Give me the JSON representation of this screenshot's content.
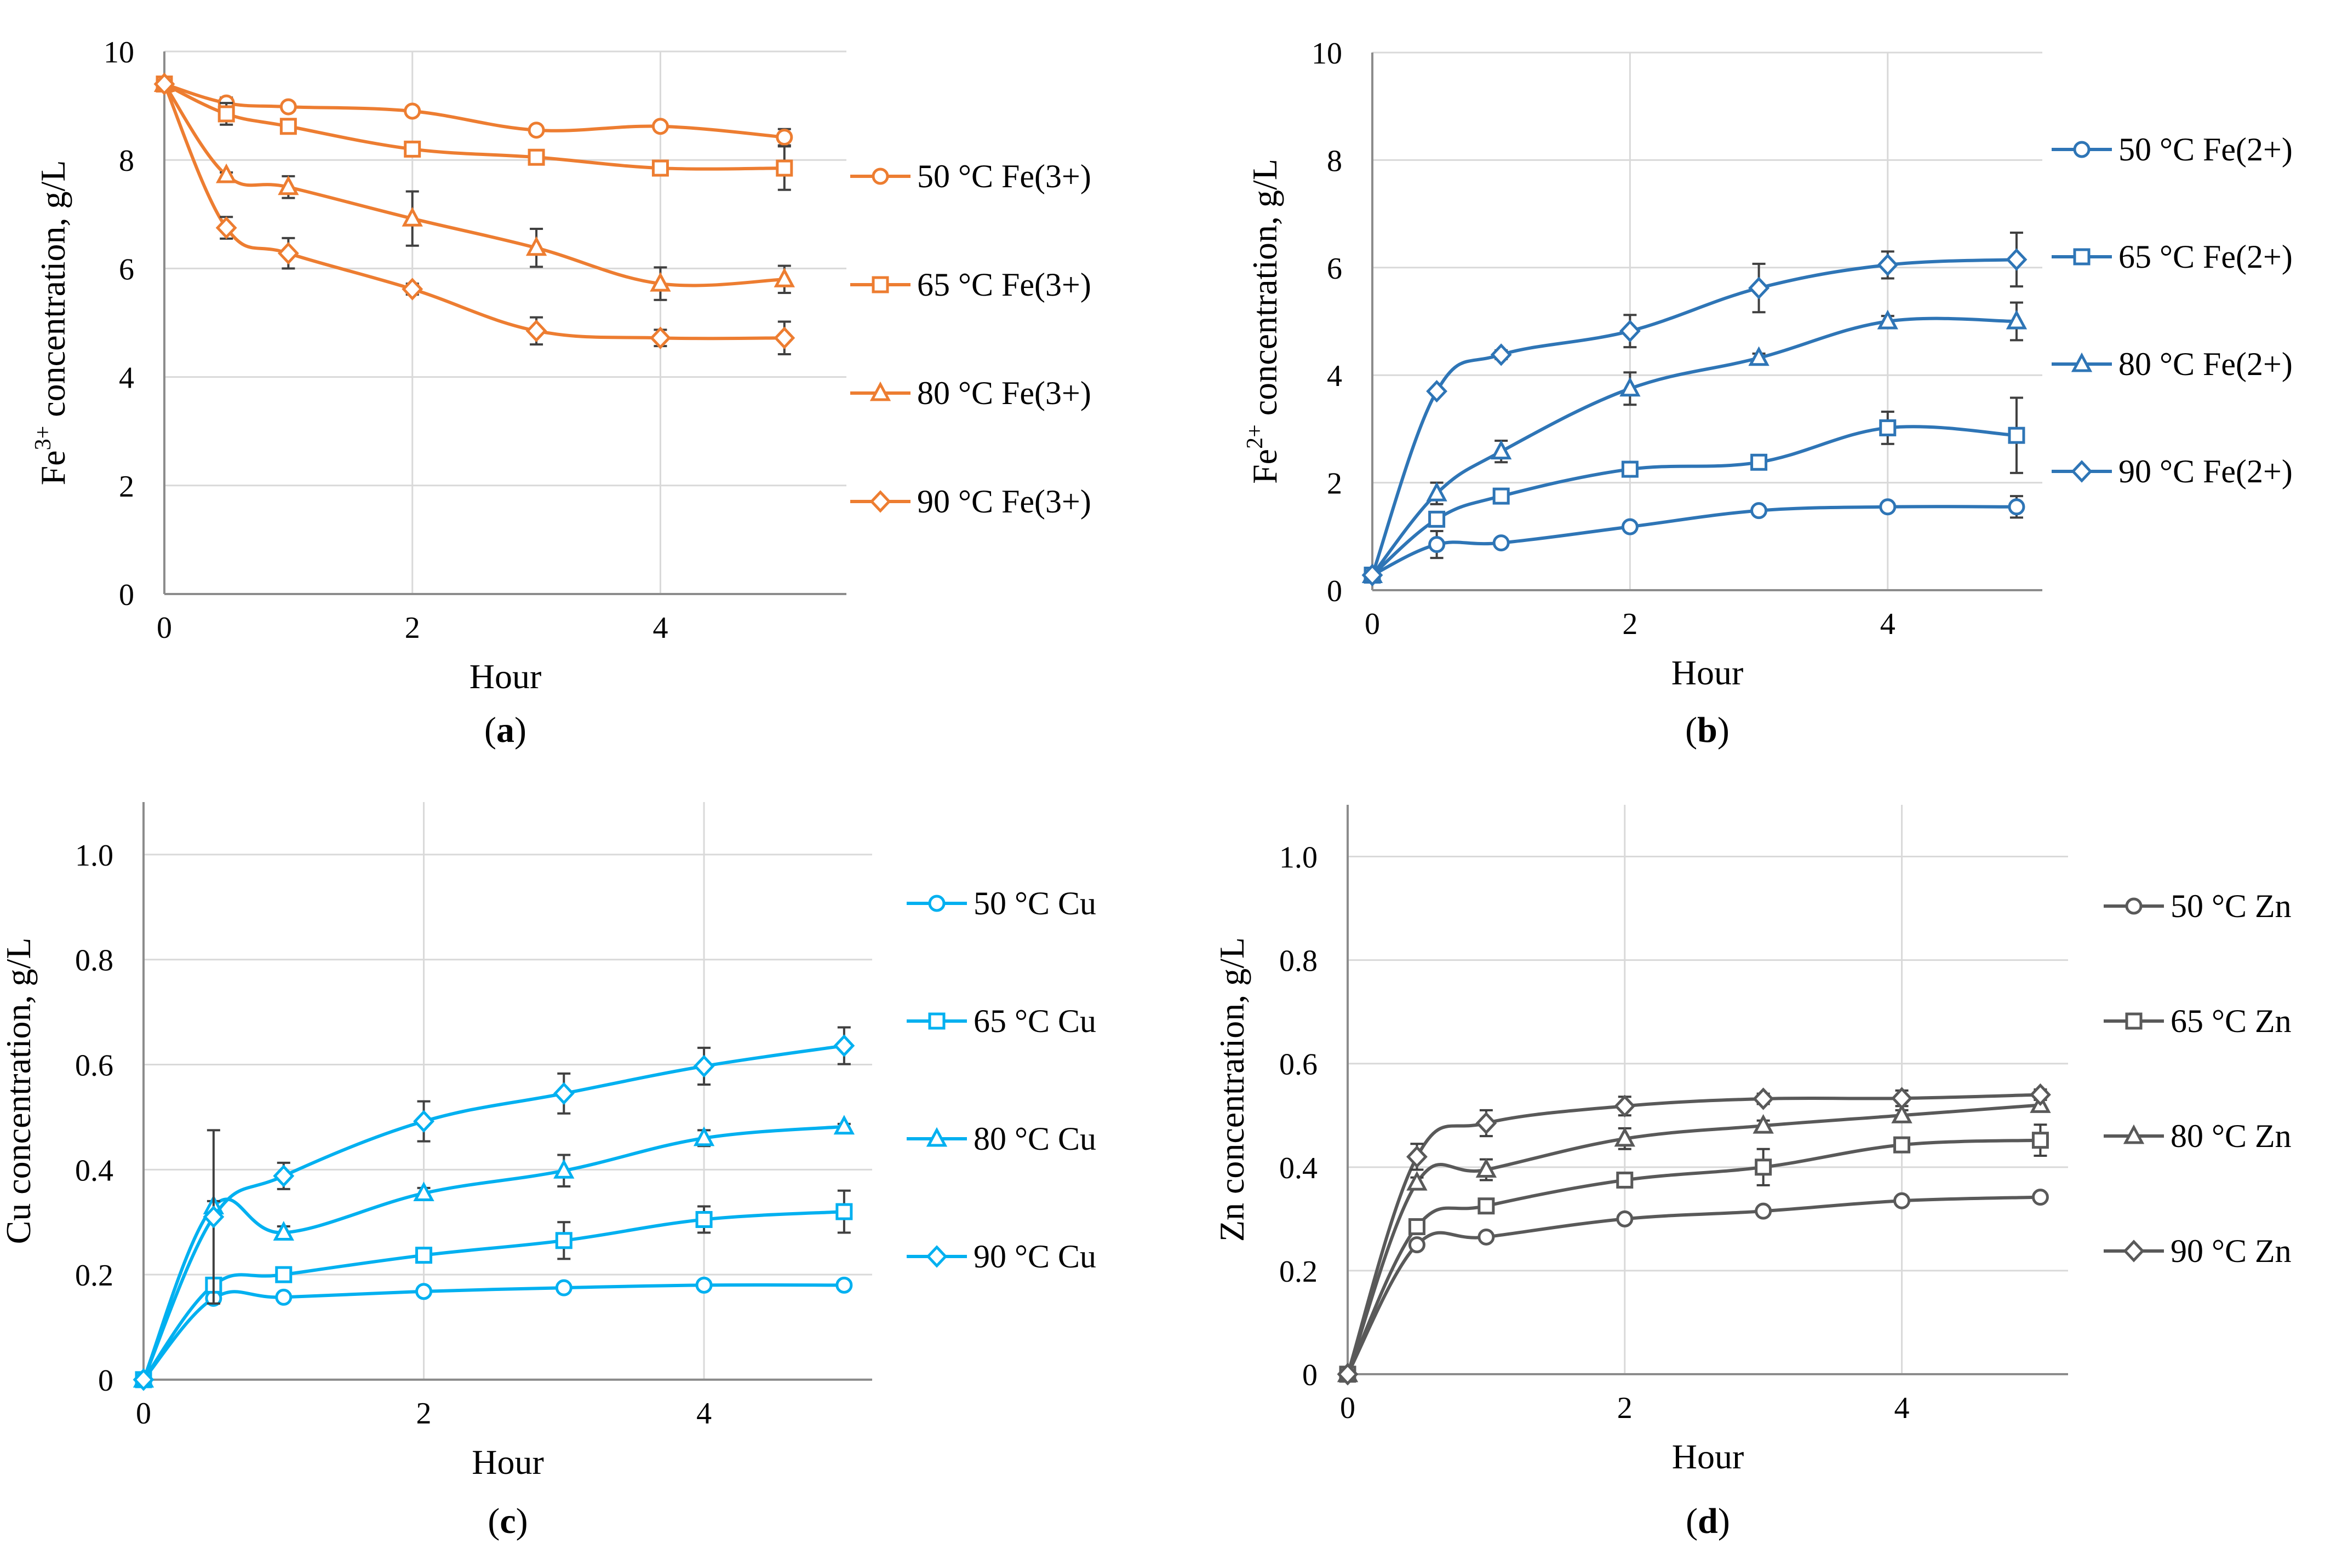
{
  "figure": [
    {
      "panel": "a",
      "caption": "a",
      "color": "#ED7D31",
      "chart_data": {
        "type": "line",
        "ylabel_main": "Fe",
        "ylabel_sup": "3+",
        "ylabel_rest": " concentration, g/L",
        "xlabel": "Hour",
        "xlim": [
          0,
          5.5
        ],
        "ylim": [
          0,
          10
        ],
        "xticks": [
          0,
          2,
          4
        ],
        "xtick_labels": [
          "0",
          "2",
          "4"
        ],
        "yticks": [
          0,
          2,
          4,
          6,
          8,
          10
        ],
        "ytick_labels": [
          "0",
          "2",
          "4",
          "6",
          "8",
          "10"
        ],
        "x": [
          0,
          0.5,
          1,
          2,
          3,
          4,
          5
        ],
        "series": [
          {
            "name": "50 °C Fe(3+)",
            "marker": "circle",
            "values": [
              9.4,
              9.05,
              8.98,
              8.9,
              8.55,
              8.62,
              8.42
            ],
            "errors": [
              0,
              0.1,
              0.05,
              0.05,
              0.05,
              0.05,
              0.15
            ]
          },
          {
            "name": "65 °C Fe(3+)",
            "marker": "square",
            "values": [
              9.4,
              8.85,
              8.62,
              8.2,
              8.05,
              7.85,
              7.85
            ],
            "errors": [
              0,
              0.2,
              0.05,
              0.05,
              0.05,
              0.05,
              0.4
            ]
          },
          {
            "name": "80 °C Fe(3+)",
            "marker": "triangle",
            "values": [
              9.4,
              7.72,
              7.5,
              6.92,
              6.38,
              5.72,
              5.8
            ],
            "errors": [
              0,
              0.05,
              0.2,
              0.5,
              0.35,
              0.3,
              0.25
            ]
          },
          {
            "name": "90 °C Fe(3+)",
            "marker": "diamond",
            "values": [
              9.4,
              6.75,
              6.28,
              5.62,
              4.85,
              4.72,
              4.72
            ],
            "errors": [
              0,
              0.2,
              0.28,
              0.1,
              0.25,
              0.15,
              0.3
            ]
          }
        ]
      }
    },
    {
      "panel": "b",
      "caption": "b",
      "color": "#2E75B6",
      "chart_data": {
        "type": "line",
        "ylabel_main": "Fe",
        "ylabel_sup": "2+",
        "ylabel_rest": " concentration, g/L",
        "xlabel": "Hour",
        "xlim": [
          0,
          5.2
        ],
        "ylim": [
          0,
          10
        ],
        "xticks": [
          0,
          2,
          4
        ],
        "xtick_labels": [
          "0",
          "2",
          "4"
        ],
        "yticks": [
          0,
          2,
          4,
          6,
          8,
          10
        ],
        "ytick_labels": [
          "0",
          "2",
          "4",
          "6",
          "8",
          "10"
        ],
        "x": [
          0,
          0.5,
          1,
          2,
          3,
          4,
          5
        ],
        "series": [
          {
            "name": "50 °C Fe(2+)",
            "marker": "circle",
            "values": [
              0.28,
              0.85,
              0.88,
              1.18,
              1.48,
              1.55,
              1.55
            ],
            "errors": [
              0,
              0.25,
              0.05,
              0.05,
              0.05,
              0.05,
              0.2
            ]
          },
          {
            "name": "65 °C Fe(2+)",
            "marker": "square",
            "values": [
              0.28,
              1.32,
              1.75,
              2.25,
              2.38,
              3.02,
              2.88
            ],
            "errors": [
              0,
              0.1,
              0.08,
              0.05,
              0.05,
              0.3,
              0.7
            ]
          },
          {
            "name": "80 °C Fe(2+)",
            "marker": "triangle",
            "values": [
              0.28,
              1.8,
              2.58,
              3.75,
              4.32,
              5.0,
              5.0
            ],
            "errors": [
              0,
              0.2,
              0.2,
              0.3,
              0.08,
              0.1,
              0.35
            ]
          },
          {
            "name": "90 °C Fe(2+)",
            "marker": "diamond",
            "values": [
              0.28,
              3.7,
              4.38,
              4.82,
              5.62,
              6.05,
              6.15
            ],
            "errors": [
              0,
              0.05,
              0.08,
              0.3,
              0.45,
              0.25,
              0.5
            ]
          }
        ]
      }
    },
    {
      "panel": "c",
      "caption": "c",
      "color": "#00B0F0",
      "chart_data": {
        "type": "line",
        "ylabel_main": "Cu concentration, g/L",
        "ylabel_sup": "",
        "ylabel_rest": "",
        "xlabel": "Hour",
        "xlim": [
          0,
          5.2
        ],
        "ylim": [
          0,
          1.1
        ],
        "xticks": [
          0,
          2,
          4
        ],
        "xtick_labels": [
          "0",
          "2",
          "4"
        ],
        "yticks": [
          0,
          0.2,
          0.4,
          0.6,
          0.8,
          1.0
        ],
        "ytick_labels": [
          "0",
          "0.2",
          "0.4",
          "0.6",
          "0.8",
          "1.0"
        ],
        "x": [
          0,
          0.5,
          1,
          2,
          3,
          4,
          5
        ],
        "series": [
          {
            "name": "50 °C Cu",
            "marker": "circle",
            "values": [
              0.0,
              0.155,
              0.157,
              0.168,
              0.175,
              0.18,
              0.18
            ],
            "errors": [
              0,
              0.01,
              0.005,
              0.005,
              0.005,
              0.005,
              0.005
            ]
          },
          {
            "name": "65 °C Cu",
            "marker": "square",
            "values": [
              0.0,
              0.18,
              0.2,
              0.237,
              0.265,
              0.305,
              0.32
            ],
            "errors": [
              0,
              0.01,
              0.005,
              0.01,
              0.035,
              0.025,
              0.04
            ]
          },
          {
            "name": "80 °C Cu",
            "marker": "triangle",
            "values": [
              0.0,
              0.33,
              0.28,
              0.355,
              0.398,
              0.46,
              0.482
            ],
            "errors": [
              0,
              0.01,
              0.012,
              0.01,
              0.03,
              0.015,
              0.005
            ]
          },
          {
            "name": "90 °C Cu",
            "marker": "diamond",
            "values": [
              0.0,
              0.31,
              0.388,
              0.492,
              0.545,
              0.597,
              0.636
            ],
            "errors": [
              0,
              0.165,
              0.025,
              0.038,
              0.038,
              0.035,
              0.035
            ]
          }
        ]
      }
    },
    {
      "panel": "d",
      "caption": "d",
      "color": "#595959",
      "chart_data": {
        "type": "line",
        "ylabel_main": "Zn concentration, g/L",
        "ylabel_sup": "",
        "ylabel_rest": "",
        "xlabel": "Hour",
        "xlim": [
          0,
          5.2
        ],
        "ylim": [
          0,
          1.1
        ],
        "xticks": [
          0,
          2,
          4
        ],
        "xtick_labels": [
          "0",
          "2",
          "4"
        ],
        "yticks": [
          0,
          0.2,
          0.4,
          0.6,
          0.8,
          1.0
        ],
        "ytick_labels": [
          "0",
          "0.2",
          "0.4",
          "0.6",
          "0.8",
          "1.0"
        ],
        "x": [
          0,
          0.5,
          1,
          2,
          3,
          4,
          5
        ],
        "series": [
          {
            "name": "50 °C Zn",
            "marker": "circle",
            "values": [
              0.0,
              0.25,
              0.265,
              0.3,
              0.315,
              0.335,
              0.342
            ],
            "errors": [
              0,
              0.005,
              0.005,
              0.005,
              0.005,
              0.005,
              0.005
            ]
          },
          {
            "name": "65 °C Zn",
            "marker": "square",
            "values": [
              0.0,
              0.285,
              0.325,
              0.375,
              0.4,
              0.443,
              0.452
            ],
            "errors": [
              0,
              0.005,
              0.01,
              0.01,
              0.035,
              0.012,
              0.03
            ]
          },
          {
            "name": "80 °C Zn",
            "marker": "triangle",
            "values": [
              0.0,
              0.37,
              0.395,
              0.455,
              0.48,
              0.5,
              0.52
            ],
            "errors": [
              0,
              0.01,
              0.02,
              0.02,
              0.01,
              0.01,
              0.01
            ]
          },
          {
            "name": "90 °C Zn",
            "marker": "diamond",
            "values": [
              0.0,
              0.42,
              0.485,
              0.518,
              0.532,
              0.533,
              0.54
            ],
            "errors": [
              0,
              0.025,
              0.025,
              0.018,
              0.01,
              0.015,
              0.01
            ]
          }
        ]
      }
    }
  ]
}
